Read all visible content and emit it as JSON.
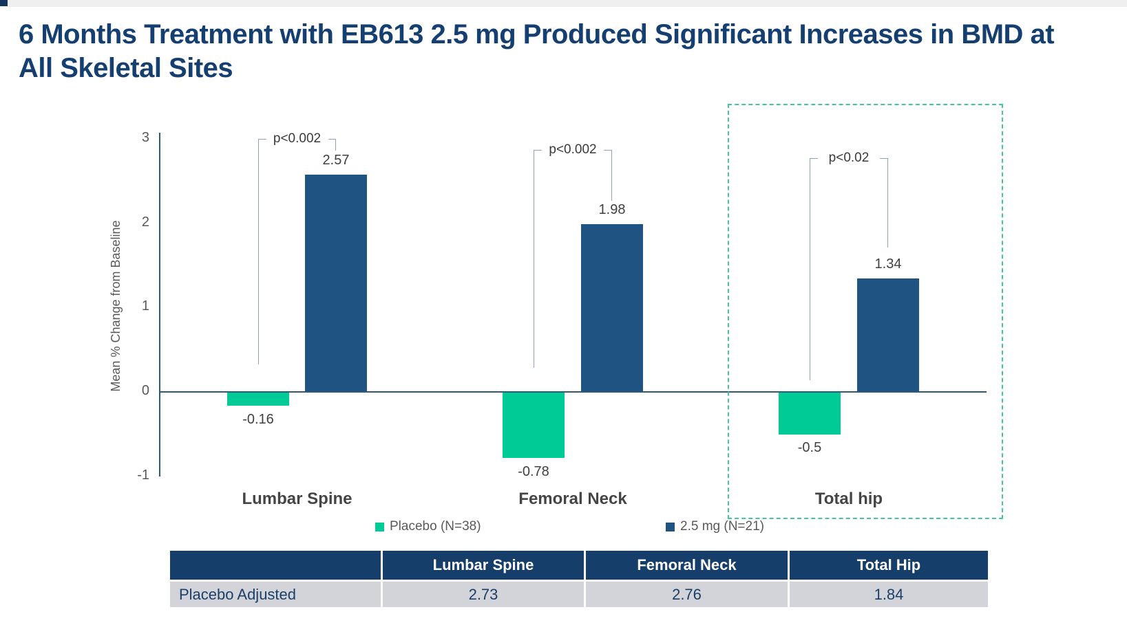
{
  "page": {
    "title": "6 Months Treatment with EB613 2.5 mg Produced Significant Increases in BMD at All Skeletal Sites"
  },
  "chart_data": {
    "type": "bar",
    "title": "",
    "xlabel": "",
    "ylabel": "Mean % Change from Baseline",
    "ylim": [
      -1,
      3
    ],
    "yticks": [
      3,
      2,
      1,
      0,
      -1
    ],
    "grid": false,
    "legend_position": "bottom",
    "categories": [
      "Lumbar Spine",
      "Femoral Neck",
      "Total hip"
    ],
    "series": [
      {
        "name": "Placebo (N=38)",
        "color": "#00ca96",
        "values": [
          -0.16,
          -0.78,
          -0.5
        ],
        "value_labels": [
          "-0.16",
          "-0.78",
          "-0.5"
        ]
      },
      {
        "name": "2.5 mg (N=21)",
        "color": "#1f5381",
        "values": [
          2.57,
          1.98,
          1.34
        ],
        "value_labels": [
          "2.57",
          "1.98",
          "1.34"
        ]
      }
    ],
    "p_values": [
      "p<0.002",
      "p<0.002",
      "p<0.02"
    ],
    "highlight": {
      "category": "Total hip",
      "style": "dashed-box",
      "color": "#42c796"
    }
  },
  "table": {
    "headers": [
      "",
      "Lumbar Spine",
      "Femoral Neck",
      "Total Hip"
    ],
    "rows": [
      {
        "label": "Placebo Adjusted",
        "values": [
          "2.73",
          "2.76",
          "1.84"
        ]
      }
    ]
  },
  "colors": {
    "title": "#143f70",
    "bar_blue": "#1f5381",
    "bar_green": "#00ca96",
    "table_header_bg": "#163e6b",
    "table_row_bg": "#d2d4d9",
    "highlight_border": "#42c796",
    "axis": "#2d5a7a"
  }
}
